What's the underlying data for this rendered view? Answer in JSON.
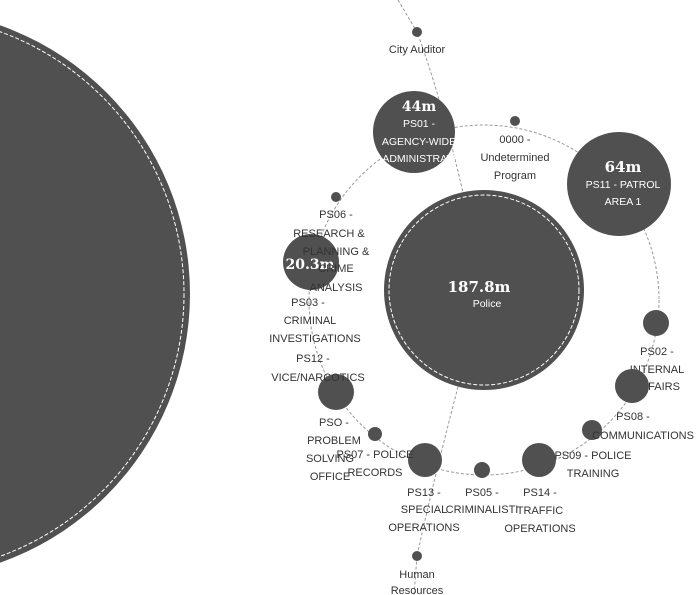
{
  "colors": {
    "node": "#505050",
    "link": "#9a9a9a",
    "label": "#333333",
    "bg": "#ffffff"
  },
  "root": {
    "value": "",
    "name": ""
  },
  "center": {
    "value": "187.8m",
    "name": "Police"
  },
  "parent_links": {
    "top": "City Auditor",
    "bottom": [
      "Human",
      "Resources"
    ]
  },
  "programs": [
    {
      "id": "ps01",
      "value": "44m",
      "name": [
        "PS01 -",
        "AGENCY-WIDE",
        "ADMINISTRATI"
      ]
    },
    {
      "id": "p0000",
      "value": "",
      "name": [
        "0000 -",
        "Undetermined",
        "Program"
      ]
    },
    {
      "id": "ps11",
      "value": "64m",
      "name": [
        "PS11 - PATROL",
        "AREA 1"
      ]
    },
    {
      "id": "ps02",
      "value": "",
      "name": [
        "PS02 -",
        "INTERNAL",
        "AFFAIRS"
      ]
    },
    {
      "id": "ps08",
      "value": "",
      "name": [
        "PS08 -",
        "COMMUNICATIONS"
      ]
    },
    {
      "id": "ps09",
      "value": "",
      "name": [
        "PS09 - POLICE",
        "TRAINING"
      ]
    },
    {
      "id": "ps14",
      "value": "",
      "name": [
        "PS14 -",
        "TRAFFIC",
        "OPERATIONS"
      ]
    },
    {
      "id": "ps05",
      "value": "",
      "name": [
        "PS05 -",
        "CRIMINALISTI"
      ]
    },
    {
      "id": "ps13",
      "value": "",
      "name": [
        "PS13 -",
        "SPECIAL",
        "OPERATIONS"
      ]
    },
    {
      "id": "ps07",
      "value": "",
      "name": [
        "PS07 - POLICE",
        "RECORDS"
      ]
    },
    {
      "id": "pso",
      "value": "",
      "name": [
        "PSO -",
        "PROBLEM",
        "SOLVING",
        "OFFICE"
      ]
    },
    {
      "id": "ps12",
      "value": "",
      "name": [
        "PS12 -",
        "VICE/NARCOTICS"
      ]
    },
    {
      "id": "ps03",
      "value": "",
      "name": [
        "PS03 -",
        "CRIMINAL",
        "INVESTIGATIONS"
      ]
    },
    {
      "id": "ps06",
      "value": "20.3m",
      "name": [
        "PS06 -",
        "RESEARCH &",
        "PLANNING &",
        "CRIME",
        "ANALYSIS"
      ]
    }
  ]
}
